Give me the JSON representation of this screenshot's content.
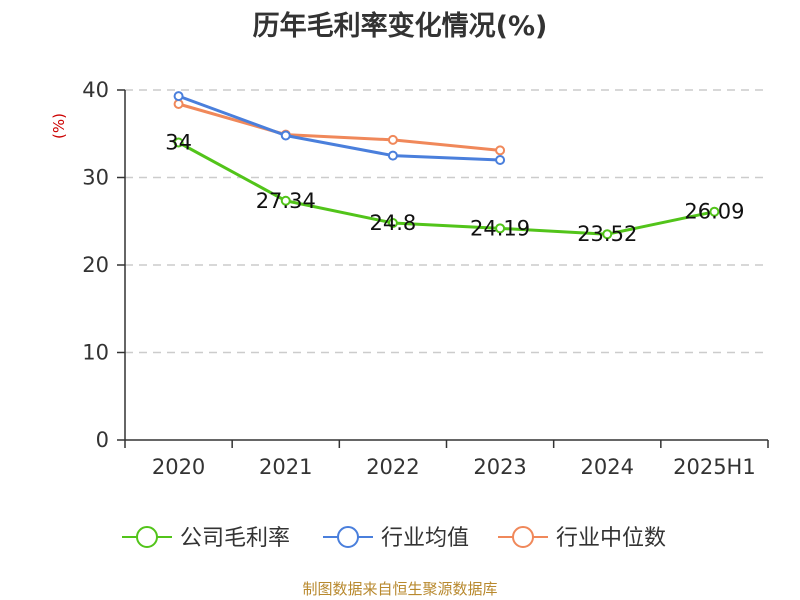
{
  "chart_data": {
    "type": "line",
    "title": "历年毛利率变化情况(%)",
    "ylabel": "(%)",
    "xlabel": "",
    "categories": [
      "2020",
      "2021",
      "2022",
      "2023",
      "2024",
      "2025H1"
    ],
    "ylim": [
      0,
      40
    ],
    "yticks": [
      0,
      10,
      20,
      30,
      40
    ],
    "grid": true,
    "legend_position": "bottom",
    "series": [
      {
        "name": "公司毛利率",
        "color": "#52c41a",
        "values": [
          34,
          27.34,
          24.8,
          24.19,
          23.52,
          26.09
        ],
        "labels": true
      },
      {
        "name": "行业均值",
        "color": "#4a7fdc",
        "values": [
          39.3,
          34.8,
          32.5,
          32.0,
          null,
          null
        ],
        "labels": false
      },
      {
        "name": "行业中位数",
        "color": "#f0885a",
        "values": [
          38.4,
          34.9,
          34.3,
          33.1,
          null,
          null
        ],
        "labels": false
      }
    ]
  },
  "source": "制图数据来自恒生聚源数据库"
}
